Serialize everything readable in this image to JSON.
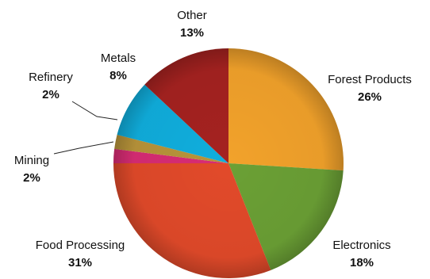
{
  "chart_data": {
    "type": "pie",
    "title": "",
    "start_angle_deg": 0,
    "direction": "clockwise",
    "slices": [
      {
        "label": "Forest Products",
        "value": 26,
        "display": "26%",
        "color": "#F2A22B"
      },
      {
        "label": "Electronics",
        "value": 18,
        "display": "18%",
        "color": "#6BA035"
      },
      {
        "label": "Food Processing",
        "value": 31,
        "display": "31%",
        "color": "#E24A2A"
      },
      {
        "label": "Mining",
        "value": 2,
        "display": "2%",
        "color": "#D82C74"
      },
      {
        "label": "Refinery",
        "value": 2,
        "display": "2%",
        "color": "#B8943A"
      },
      {
        "label": "Metals",
        "value": 8,
        "display": "8%",
        "color": "#10AEDD"
      },
      {
        "label": "Other",
        "value": 13,
        "display": "13%",
        "color": "#A52220"
      }
    ]
  }
}
